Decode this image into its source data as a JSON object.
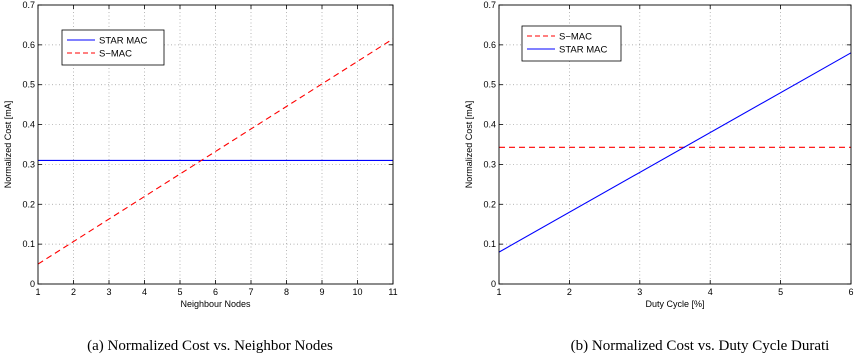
{
  "colors": {
    "blue": "#0000ff",
    "red": "#ff0000"
  },
  "chart_data": [
    {
      "type": "line",
      "caption": "(a)  Normalized Cost vs. Neighbor Nodes",
      "xlabel": "Neighbour Nodes",
      "ylabel": "Normalized Cost [mA]",
      "xlim": [
        1,
        11
      ],
      "ylim": [
        0,
        0.7
      ],
      "xticks": [
        "1",
        "2",
        "3",
        "4",
        "5",
        "6",
        "7",
        "8",
        "9",
        "10",
        "11"
      ],
      "yticks": [
        "0",
        "0.1",
        "0.2",
        "0.3",
        "0.4",
        "0.5",
        "0.6",
        "0.7"
      ],
      "grid": true,
      "legend_position": "top-left",
      "series": [
        {
          "name": "STAR MAC",
          "color": "#0000ff",
          "style": "solid",
          "x": [
            1,
            11
          ],
          "y": [
            0.31,
            0.31
          ]
        },
        {
          "name": "S−MAC",
          "color": "#ff0000",
          "style": "dashed",
          "x": [
            1,
            11
          ],
          "y": [
            0.05,
            0.615
          ]
        }
      ]
    },
    {
      "type": "line",
      "caption": "(b)  Normalized Cost vs. Duty Cycle Durati",
      "xlabel": "Duty Cycle [%]",
      "ylabel": "Normalized Cost [mA]",
      "xlim": [
        1,
        6
      ],
      "ylim": [
        0,
        0.7
      ],
      "xticks": [
        "1",
        "2",
        "3",
        "4",
        "5",
        "6"
      ],
      "yticks": [
        "0",
        "0.1",
        "0.2",
        "0.3",
        "0.4",
        "0.5",
        "0.6",
        "0.7"
      ],
      "grid": true,
      "legend_position": "top-left",
      "series": [
        {
          "name": "S−MAC",
          "color": "#ff0000",
          "style": "dashed",
          "x": [
            1,
            6
          ],
          "y": [
            0.343,
            0.343
          ]
        },
        {
          "name": "STAR MAC",
          "color": "#0000ff",
          "style": "solid",
          "x": [
            1,
            6
          ],
          "y": [
            0.08,
            0.58
          ]
        }
      ]
    }
  ]
}
